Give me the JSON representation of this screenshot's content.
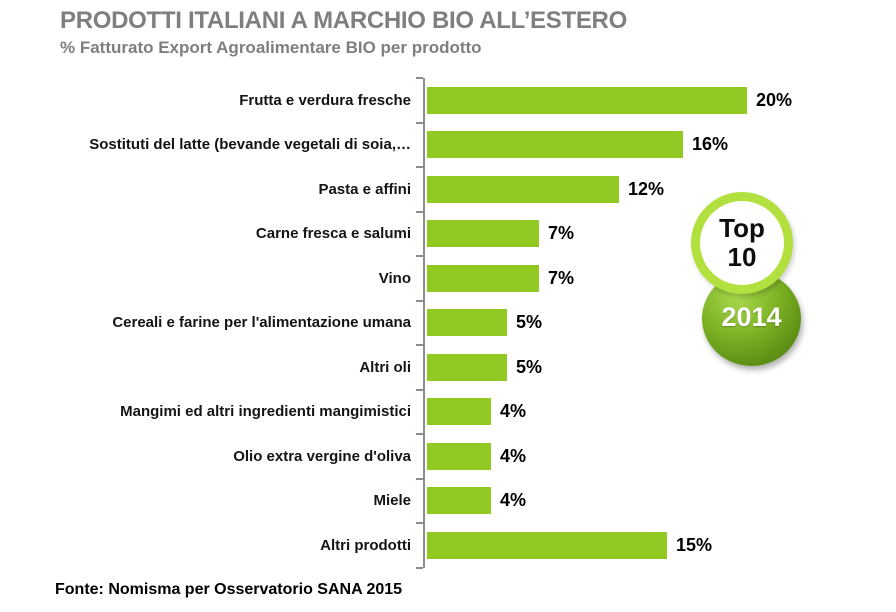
{
  "header": {
    "title": "PRODOTTI ITALIANI A MARCHIO BIO ALL’ESTERO",
    "subtitle": "% Fatturato Export Agroalimentare BIO per prodotto"
  },
  "badge": {
    "line1": "Top",
    "line2": "10",
    "year": "2014"
  },
  "footer": {
    "source": "Fonte: Nomisma per Osservatorio SANA 2015"
  },
  "colors": {
    "bar": "#92c822",
    "title_gray": "#7f7f7f",
    "axis_gray": "#8c8c8c",
    "label_black": "#141414",
    "ring_green": "#b2e13f",
    "ball_green_light": "#a9d94e",
    "ball_green_dark": "#4c7a0c"
  },
  "chart_data": {
    "type": "bar",
    "orientation": "horizontal",
    "title": "PRODOTTI ITALIANI A MARCHIO BIO ALL’ESTERO",
    "subtitle": "% Fatturato Export Agroalimentare BIO per prodotto",
    "unit": "%",
    "xlim": [
      0,
      20
    ],
    "grid": false,
    "legend": false,
    "categories": [
      "Frutta e verdura fresche",
      "Sostituti del latte (bevande vegetali di soia,…",
      "Pasta e affini",
      "Carne fresca e salumi",
      "Vino",
      "Cereali e farine per l'alimentazione umana",
      "Altri oli",
      "Mangimi ed altri ingredienti mangimistici",
      "Olio extra vergine d'oliva",
      "Miele",
      "Altri prodotti"
    ],
    "values": [
      20,
      16,
      12,
      7,
      7,
      5,
      5,
      4,
      4,
      4,
      15
    ],
    "value_labels": [
      "20%",
      "16%",
      "12%",
      "7%",
      "7%",
      "5%",
      "5%",
      "4%",
      "4%",
      "4%",
      "15%"
    ]
  }
}
